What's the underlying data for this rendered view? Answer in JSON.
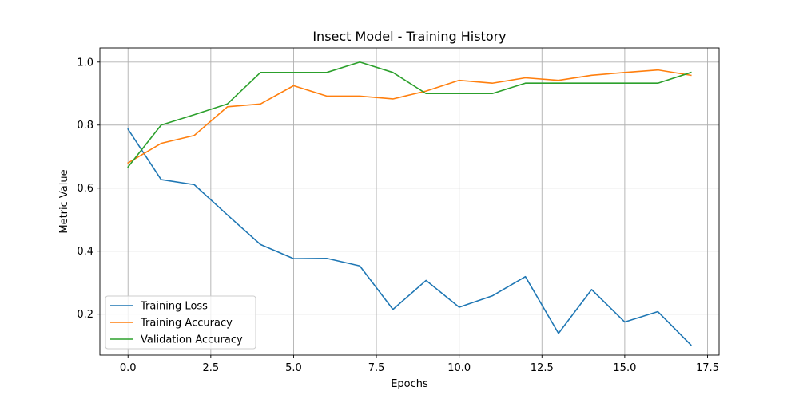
{
  "chart_data": {
    "type": "line",
    "title": "Insect Model - Training History",
    "xlabel": "Epochs",
    "ylabel": "Metric Value",
    "x": [
      0,
      1,
      2,
      3,
      4,
      5,
      6,
      7,
      8,
      9,
      10,
      11,
      12,
      13,
      14,
      15,
      16,
      17
    ],
    "xlim": [
      -0.85,
      17.85
    ],
    "ylim": [
      0.07,
      1.045
    ],
    "xticks": [
      0.0,
      2.5,
      5.0,
      7.5,
      10.0,
      12.5,
      15.0,
      17.5
    ],
    "xtick_labels": [
      "0.0",
      "2.5",
      "5.0",
      "7.5",
      "10.0",
      "12.5",
      "15.0",
      "17.5"
    ],
    "yticks": [
      0.2,
      0.4,
      0.6,
      0.8,
      1.0
    ],
    "ytick_labels": [
      "0.2",
      "0.4",
      "0.6",
      "0.8",
      "1.0"
    ],
    "grid": true,
    "legend_position": "lower-left",
    "series": [
      {
        "name": "Training Loss",
        "color": "#1f77b4",
        "values": [
          0.787,
          0.627,
          0.611,
          0.515,
          0.421,
          0.376,
          0.377,
          0.353,
          0.215,
          0.307,
          0.222,
          0.258,
          0.319,
          0.139,
          0.278,
          0.175,
          0.208,
          0.102
        ]
      },
      {
        "name": "Training Accuracy",
        "color": "#ff7f0e",
        "values": [
          0.68,
          0.742,
          0.767,
          0.858,
          0.867,
          0.925,
          0.892,
          0.892,
          0.883,
          0.908,
          0.942,
          0.933,
          0.95,
          0.942,
          0.958,
          0.967,
          0.975,
          0.958
        ]
      },
      {
        "name": "Validation Accuracy",
        "color": "#2ca02c",
        "values": [
          0.667,
          0.8,
          0.833,
          0.867,
          0.967,
          0.967,
          0.967,
          1.0,
          0.967,
          0.9,
          0.9,
          0.9,
          0.933,
          0.933,
          0.933,
          0.933,
          0.933,
          0.967
        ]
      }
    ]
  }
}
